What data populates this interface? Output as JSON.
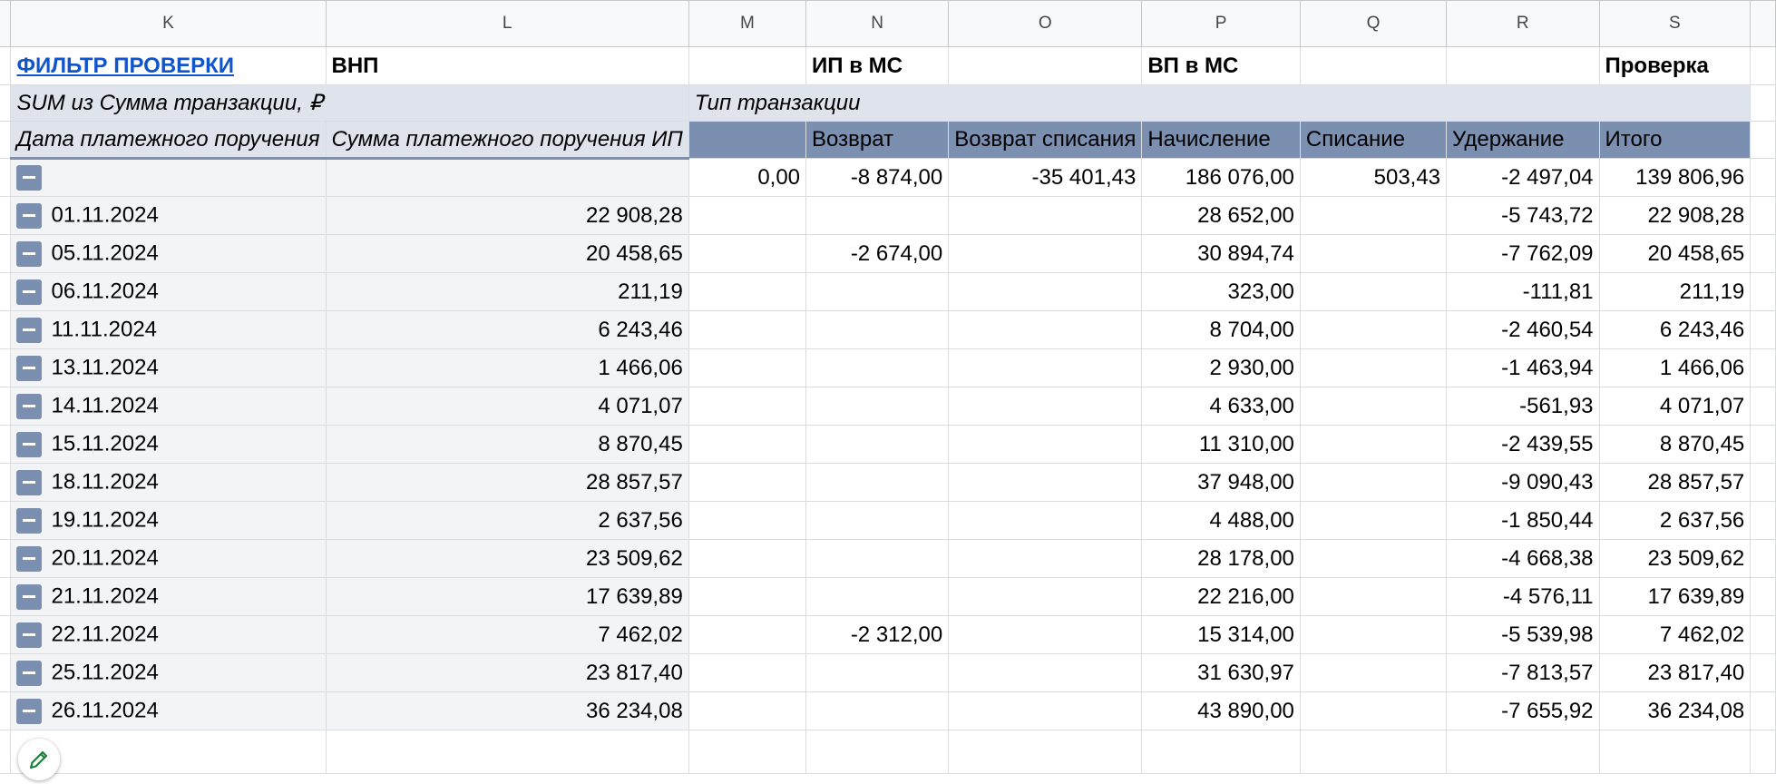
{
  "columns": [
    "K",
    "L",
    "M",
    "N",
    "O",
    "P",
    "Q",
    "R",
    "S"
  ],
  "row1": {
    "filter_link": "ФИЛЬТР ПРОВЕРКИ",
    "l": "ВНП",
    "n": "ИП в МС",
    "p": "ВП в МС",
    "s": "Проверка"
  },
  "row2": {
    "values_label": "SUM из Сумма транзакции, ₽",
    "column_field": "Тип транзакции"
  },
  "row3": {
    "row_field_1": "Дата платежного поручения",
    "row_field_2": "Сумма платежного поручения ИП",
    "types": [
      "Возврат",
      "Возврат списания",
      "Начисление",
      "Списание",
      "Удержание",
      "Итого"
    ]
  },
  "blank_row": {
    "m": "0,00",
    "n": "-8 874,00",
    "o": "-35 401,43",
    "p": "186 076,00",
    "q": "503,43",
    "r": "-2 497,04",
    "s": "139 806,96"
  },
  "rows": [
    {
      "date": "01.11.2024",
      "amount": "22 908,28",
      "vozvrat": "",
      "nachislenie": "28 652,00",
      "uderzhanie": "-5 743,72",
      "itogo": "22 908,28"
    },
    {
      "date": "05.11.2024",
      "amount": "20 458,65",
      "vozvrat": "-2 674,00",
      "nachislenie": "30 894,74",
      "uderzhanie": "-7 762,09",
      "itogo": "20 458,65"
    },
    {
      "date": "06.11.2024",
      "amount": "211,19",
      "vozvrat": "",
      "nachislenie": "323,00",
      "uderzhanie": "-111,81",
      "itogo": "211,19"
    },
    {
      "date": "11.11.2024",
      "amount": "6 243,46",
      "vozvrat": "",
      "nachislenie": "8 704,00",
      "uderzhanie": "-2 460,54",
      "itogo": "6 243,46"
    },
    {
      "date": "13.11.2024",
      "amount": "1 466,06",
      "vozvrat": "",
      "nachislenie": "2 930,00",
      "uderzhanie": "-1 463,94",
      "itogo": "1 466,06"
    },
    {
      "date": "14.11.2024",
      "amount": "4 071,07",
      "vozvrat": "",
      "nachislenie": "4 633,00",
      "uderzhanie": "-561,93",
      "itogo": "4 071,07"
    },
    {
      "date": "15.11.2024",
      "amount": "8 870,45",
      "vozvrat": "",
      "nachislenie": "11 310,00",
      "uderzhanie": "-2 439,55",
      "itogo": "8 870,45"
    },
    {
      "date": "18.11.2024",
      "amount": "28 857,57",
      "vozvrat": "",
      "nachislenie": "37 948,00",
      "uderzhanie": "-9 090,43",
      "itogo": "28 857,57"
    },
    {
      "date": "19.11.2024",
      "amount": "2 637,56",
      "vozvrat": "",
      "nachislenie": "4 488,00",
      "uderzhanie": "-1 850,44",
      "itogo": "2 637,56"
    },
    {
      "date": "20.11.2024",
      "amount": "23 509,62",
      "vozvrat": "",
      "nachislenie": "28 178,00",
      "uderzhanie": "-4 668,38",
      "itogo": "23 509,62"
    },
    {
      "date": "21.11.2024",
      "amount": "17 639,89",
      "vozvrat": "",
      "nachislenie": "22 216,00",
      "uderzhanie": "-4 576,11",
      "itogo": "17 639,89"
    },
    {
      "date": "22.11.2024",
      "amount": "7 462,02",
      "vozvrat": "-2 312,00",
      "nachislenie": "15 314,00",
      "uderzhanie": "-5 539,98",
      "itogo": "7 462,02"
    },
    {
      "date": "25.11.2024",
      "amount": "23 817,40",
      "vozvrat": "",
      "nachislenie": "31 630,97",
      "uderzhanie": "-7 813,57",
      "itogo": "23 817,40"
    },
    {
      "date": "26.11.2024",
      "amount": "36 234,08",
      "vozvrat": "",
      "nachislenie": "43 890,00",
      "uderzhanie": "-7 655,92",
      "itogo": "36 234,08"
    }
  ],
  "icons": {
    "collapse": "minus-icon",
    "edit": "pencil-icon"
  },
  "colors": {
    "pivot_header": "#7b8fb0",
    "pivot_light": "#dfe3ec",
    "link": "#1155cc",
    "edit_icon": "#188038"
  }
}
